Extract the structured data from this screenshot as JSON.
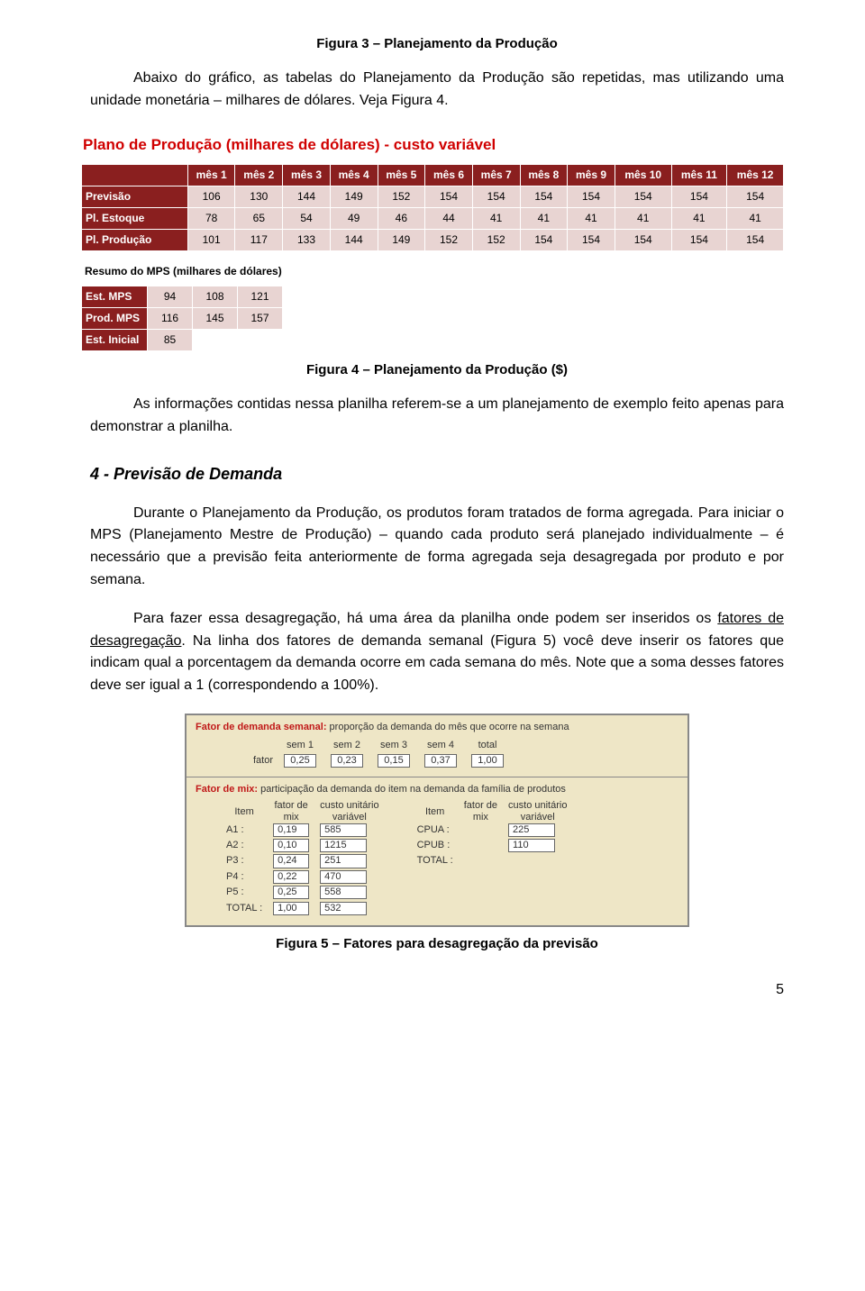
{
  "captions": {
    "fig3": "Figura 3 – Planejamento da Produção",
    "fig4": "Figura 4 – Planejamento da Produção ($)",
    "fig5": "Figura 5 – Fatores para desagregação da previsão"
  },
  "paragraphs": {
    "p1": "Abaixo do gráfico, as tabelas do Planejamento da Produção são repetidas, mas utilizando uma unidade monetária – milhares de dólares. Veja Figura 4.",
    "p2": "As informações contidas nessa planilha referem-se a um planejamento de exemplo feito apenas para demonstrar a planilha.",
    "p3": "Durante o Planejamento da Produção, os produtos foram tratados de forma agregada. Para iniciar o MPS (Planejamento Mestre de Produção) – quando cada produto será planejado individualmente – é necessário que a previsão feita anteriormente de forma agregada seja desagregada por produto e por semana.",
    "p4a": "Para fazer essa desagregação, há uma área da planilha onde podem ser inseridos os ",
    "p4_underline": "fatores de desagregação",
    "p4b": ". Na linha dos fatores de demanda semanal (Figura 5) você deve inserir os fatores que indicam qual a porcentagem da demanda ocorre em cada semana do mês. Note que a soma desses fatores deve ser igual a 1 (correspondendo a 100%)."
  },
  "section4": "4 - Previsão de Demanda",
  "plano": {
    "title": "Plano de Produção (milhares de dólares) - custo variável",
    "months": [
      "mês 1",
      "mês 2",
      "mês 3",
      "mês 4",
      "mês 5",
      "mês 6",
      "mês 7",
      "mês 8",
      "mês 9",
      "mês 10",
      "mês 11",
      "mês 12"
    ],
    "rows": [
      {
        "label": "Previsão",
        "vals": [
          106,
          130,
          144,
          149,
          152,
          154,
          154,
          154,
          154,
          154,
          154,
          154
        ]
      },
      {
        "label": "Pl. Estoque",
        "vals": [
          78,
          65,
          54,
          49,
          46,
          44,
          41,
          41,
          41,
          41,
          41,
          41
        ]
      },
      {
        "label": "Pl. Produção",
        "vals": [
          101,
          117,
          133,
          144,
          149,
          152,
          152,
          154,
          154,
          154,
          154,
          154
        ]
      }
    ],
    "resumo_title": "Resumo do MPS (milhares de dólares)",
    "resumo_rows": [
      {
        "label": "Est. MPS",
        "vals": [
          94,
          108,
          121
        ]
      },
      {
        "label": "Prod. MPS",
        "vals": [
          116,
          145,
          157
        ]
      },
      {
        "label": "Est. Inicial",
        "vals": [
          85,
          "",
          ""
        ]
      }
    ]
  },
  "fatores": {
    "semana": {
      "title_red": "Fator de demanda semanal:",
      "title_rest": " proporção da demanda do mês que ocorre na semana",
      "headers": [
        "sem 1",
        "sem 2",
        "sem 3",
        "sem 4",
        "total"
      ],
      "row_label": "fator",
      "values": [
        "0,25",
        "0,23",
        "0,15",
        "0,37",
        "1,00"
      ]
    },
    "mix": {
      "title_red": "Fator de mix:",
      "title_rest": " participação da demanda do item na demanda da família de produtos",
      "col_headers": {
        "item": "Item",
        "fator": "fator de\nmix",
        "custo": "custo unitário\nvariável"
      },
      "left": [
        {
          "item": "A1 :",
          "mix": "0,19",
          "custo": "585"
        },
        {
          "item": "A2 :",
          "mix": "0,10",
          "custo": "1215"
        },
        {
          "item": "P3 :",
          "mix": "0,24",
          "custo": "251"
        },
        {
          "item": "P4 :",
          "mix": "0,22",
          "custo": "470"
        },
        {
          "item": "P5 :",
          "mix": "0,25",
          "custo": "558"
        },
        {
          "item": "TOTAL :",
          "mix": "1,00",
          "custo": "532"
        }
      ],
      "right": [
        {
          "item": "CPUA :",
          "mix": "",
          "custo": "225"
        },
        {
          "item": "CPUB :",
          "mix": "",
          "custo": "110"
        },
        {
          "item": "TOTAL :",
          "mix": "",
          "custo": ""
        }
      ]
    }
  },
  "page_number": "5"
}
